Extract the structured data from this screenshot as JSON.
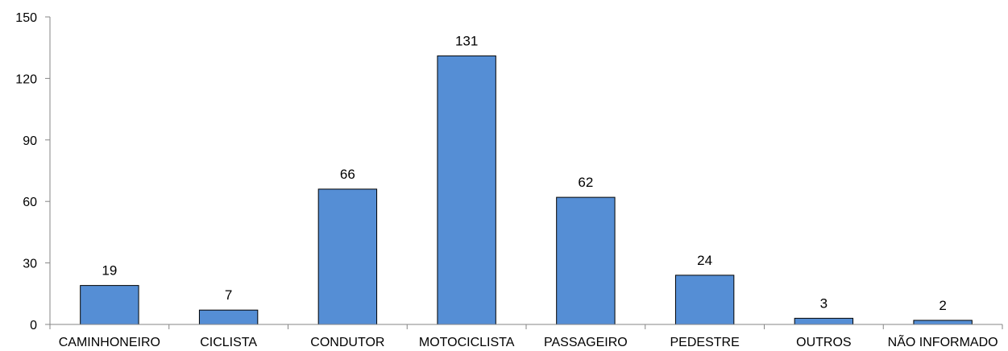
{
  "chart_data": {
    "type": "bar",
    "title": "",
    "xlabel": "",
    "ylabel": "",
    "categories": [
      "CAMINHONEIRO",
      "CICLISTA",
      "CONDUTOR",
      "MOTOCICLISTA",
      "PASSAGEIRO",
      "PEDESTRE",
      "OUTROS",
      "NÃO INFORMADO"
    ],
    "values": [
      19,
      7,
      66,
      131,
      62,
      24,
      3,
      2
    ],
    "ylim": [
      0,
      150
    ],
    "yticks": [
      0,
      30,
      60,
      90,
      120,
      150
    ],
    "grid": false,
    "legend": "none",
    "data_labels": true,
    "colors": {
      "bar": "#558ED5",
      "bar_edge": "#000000",
      "axis": "#868686"
    }
  }
}
